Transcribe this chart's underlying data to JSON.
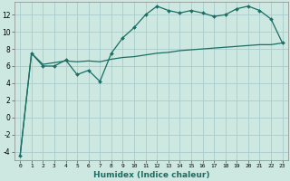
{
  "xlabel": "Humidex (Indice chaleur)",
  "bg_color": "#cce8e0",
  "grid_color": "#aacccc",
  "line_color": "#1a6e64",
  "xlim": [
    -0.5,
    23.5
  ],
  "ylim": [
    -5,
    13.5
  ],
  "x_ticks": [
    0,
    1,
    2,
    3,
    4,
    5,
    6,
    7,
    8,
    9,
    10,
    11,
    12,
    13,
    14,
    15,
    16,
    17,
    18,
    19,
    20,
    21,
    22,
    23
  ],
  "y_ticks": [
    -4,
    -2,
    0,
    2,
    4,
    6,
    8,
    10,
    12
  ],
  "series1_x": [
    0,
    1,
    2,
    3,
    4,
    5,
    6,
    7,
    8,
    9,
    10,
    11,
    12,
    13,
    14,
    15,
    16,
    17,
    18,
    19,
    20,
    21,
    22,
    23
  ],
  "series1_y": [
    -4.5,
    7.5,
    6.0,
    6.0,
    6.7,
    5.0,
    5.5,
    4.2,
    7.5,
    9.3,
    10.5,
    12.0,
    13.0,
    12.5,
    12.2,
    12.5,
    12.2,
    11.8,
    12.0,
    12.7,
    13.0,
    12.5,
    11.5,
    8.7
  ],
  "series2_x": [
    0,
    1,
    2,
    3,
    4,
    5,
    6,
    7,
    8,
    9,
    10,
    11,
    12,
    13,
    14,
    15,
    16,
    17,
    18,
    19,
    20,
    21,
    22,
    23
  ],
  "series2_y": [
    -4.5,
    7.5,
    6.2,
    6.4,
    6.6,
    6.5,
    6.6,
    6.5,
    6.8,
    7.0,
    7.1,
    7.3,
    7.5,
    7.6,
    7.8,
    7.9,
    8.0,
    8.1,
    8.2,
    8.3,
    8.4,
    8.5,
    8.5,
    8.7
  ]
}
